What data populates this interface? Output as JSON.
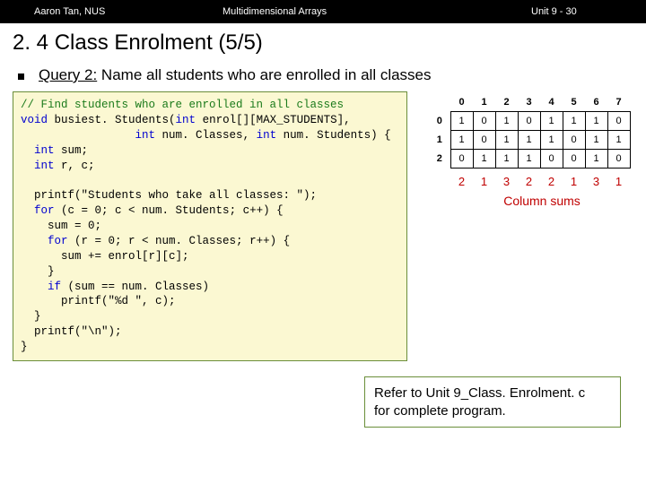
{
  "header": {
    "left": "Aaron Tan, NUS",
    "center": "Multidimensional Arrays",
    "right": "Unit 9 - 30"
  },
  "title": "2. 4 Class Enrolment (5/5)",
  "bullet": {
    "prefix": "Query 2:",
    "rest": " Name all students who are enrolled in all classes"
  },
  "code": {
    "line1": "// Find students who are enrolled in all classes",
    "line2a": "void",
    "line2b": " busiest. Students(",
    "line2c": "int",
    "line2d": " enrol[][MAX_STUDENTS],",
    "line3a": "                 ",
    "line3b": "int",
    "line3c": " num. Classes, ",
    "line3d": "int",
    "line3e": " num. Students) {",
    "line4a": "  ",
    "line4b": "int",
    "line4c": " sum;",
    "line5a": "  ",
    "line5b": "int",
    "line5c": " r, c;",
    "blank1": " ",
    "line6": "  printf(\"Students who take all classes: \");",
    "line7a": "  ",
    "line7b": "for",
    "line7c": " (c = 0; c < num. Students; c++) {",
    "line8": "    sum = 0;",
    "line9a": "    ",
    "line9b": "for",
    "line9c": " (r = 0; r < num. Classes; r++) {",
    "line10": "      sum += enrol[r][c];",
    "line11": "    }",
    "line12a": "    ",
    "line12b": "if",
    "line12c": " (sum == num. Classes)",
    "line13": "      printf(\"%d \", c);",
    "line14": "  }",
    "line15": "  printf(\"\\n\");",
    "line16": "}"
  },
  "table": {
    "col_headers": [
      "0",
      "1",
      "2",
      "3",
      "4",
      "5",
      "6",
      "7"
    ],
    "row_headers": [
      "0",
      "1",
      "2"
    ],
    "rows": [
      [
        "1",
        "0",
        "1",
        "0",
        "1",
        "1",
        "1",
        "0"
      ],
      [
        "1",
        "0",
        "1",
        "1",
        "1",
        "0",
        "1",
        "1"
      ],
      [
        "0",
        "1",
        "1",
        "1",
        "0",
        "0",
        "1",
        "0"
      ]
    ],
    "sums": [
      "2",
      "1",
      "3",
      "2",
      "2",
      "1",
      "3",
      "1"
    ],
    "sums_label": "Column sums"
  },
  "refer": {
    "line1": "Refer to Unit 9_Class. Enrolment. c",
    "line2": "for complete program."
  }
}
